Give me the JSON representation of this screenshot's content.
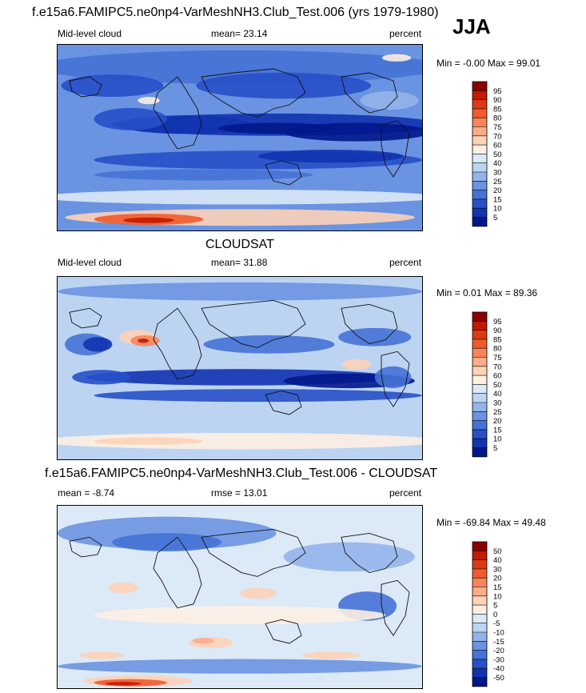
{
  "season": "JJA",
  "chart_data": [
    {
      "type": "heatmap",
      "panel_title": "f.e15a6.FAMIPC5.ne0np4-VarMeshNH3.Club_Test.006 (yrs 1979-1980)",
      "left_label": "Mid-level cloud",
      "center_label": "mean=  23.14",
      "right_label": "percent",
      "stats": "Min =  -0.00 Max =  99.01",
      "mean": 23.14,
      "min": -0.0,
      "max": 99.01,
      "units": "percent",
      "colorbar": {
        "levels": [
          "95",
          "90",
          "85",
          "80",
          "75",
          "70",
          "60",
          "50",
          "40",
          "30",
          "25",
          "20",
          "15",
          "10",
          "5"
        ],
        "colors": [
          "#8b0000",
          "#c11a00",
          "#dc3a10",
          "#ef5b2c",
          "#f7845a",
          "#fbac88",
          "#fdd2b6",
          "#fdf0e3",
          "#dce9f7",
          "#bcd4f2",
          "#93b4ea",
          "#6a93e1",
          "#4672d6",
          "#2750c8",
          "#1133b0",
          "#02178c"
        ]
      }
    },
    {
      "type": "heatmap",
      "panel_title": "CLOUDSAT",
      "left_label": "Mid-level cloud",
      "center_label": "mean=  31.88",
      "right_label": "percent",
      "stats": "Min =   0.01 Max =  89.36",
      "mean": 31.88,
      "min": 0.01,
      "max": 89.36,
      "units": "percent",
      "colorbar": {
        "levels": [
          "95",
          "90",
          "85",
          "80",
          "75",
          "70",
          "60",
          "50",
          "40",
          "30",
          "25",
          "20",
          "15",
          "10",
          "5"
        ],
        "colors": [
          "#8b0000",
          "#c11a00",
          "#dc3a10",
          "#ef5b2c",
          "#f7845a",
          "#fbac88",
          "#fdd2b6",
          "#fdf0e3",
          "#dce9f7",
          "#bcd4f2",
          "#93b4ea",
          "#6a93e1",
          "#4672d6",
          "#2750c8",
          "#1133b0",
          "#02178c"
        ]
      }
    },
    {
      "type": "heatmap",
      "panel_title": "f.e15a6.FAMIPC5.ne0np4-VarMeshNH3.Club_Test.006 - CLOUDSAT",
      "left_label": "mean =  -8.74",
      "center_label": "rmse =  13.01",
      "right_label": "percent",
      "stats": "Min = -69.84 Max =  49.48",
      "mean": -8.74,
      "rmse": 13.01,
      "min": -69.84,
      "max": 49.48,
      "units": "percent",
      "colorbar": {
        "levels": [
          "50",
          "40",
          "30",
          "20",
          "15",
          "10",
          "5",
          "0",
          "-5",
          "-10",
          "-15",
          "-20",
          "-30",
          "-40",
          "-50"
        ],
        "colors": [
          "#8b0000",
          "#c11a00",
          "#dc3a10",
          "#ef5b2c",
          "#f7845a",
          "#fbac88",
          "#fdd2b6",
          "#fdf0e3",
          "#dce9f7",
          "#bcd4f2",
          "#93b4ea",
          "#6a93e1",
          "#4672d6",
          "#2750c8",
          "#1133b0",
          "#02178c"
        ]
      }
    }
  ]
}
